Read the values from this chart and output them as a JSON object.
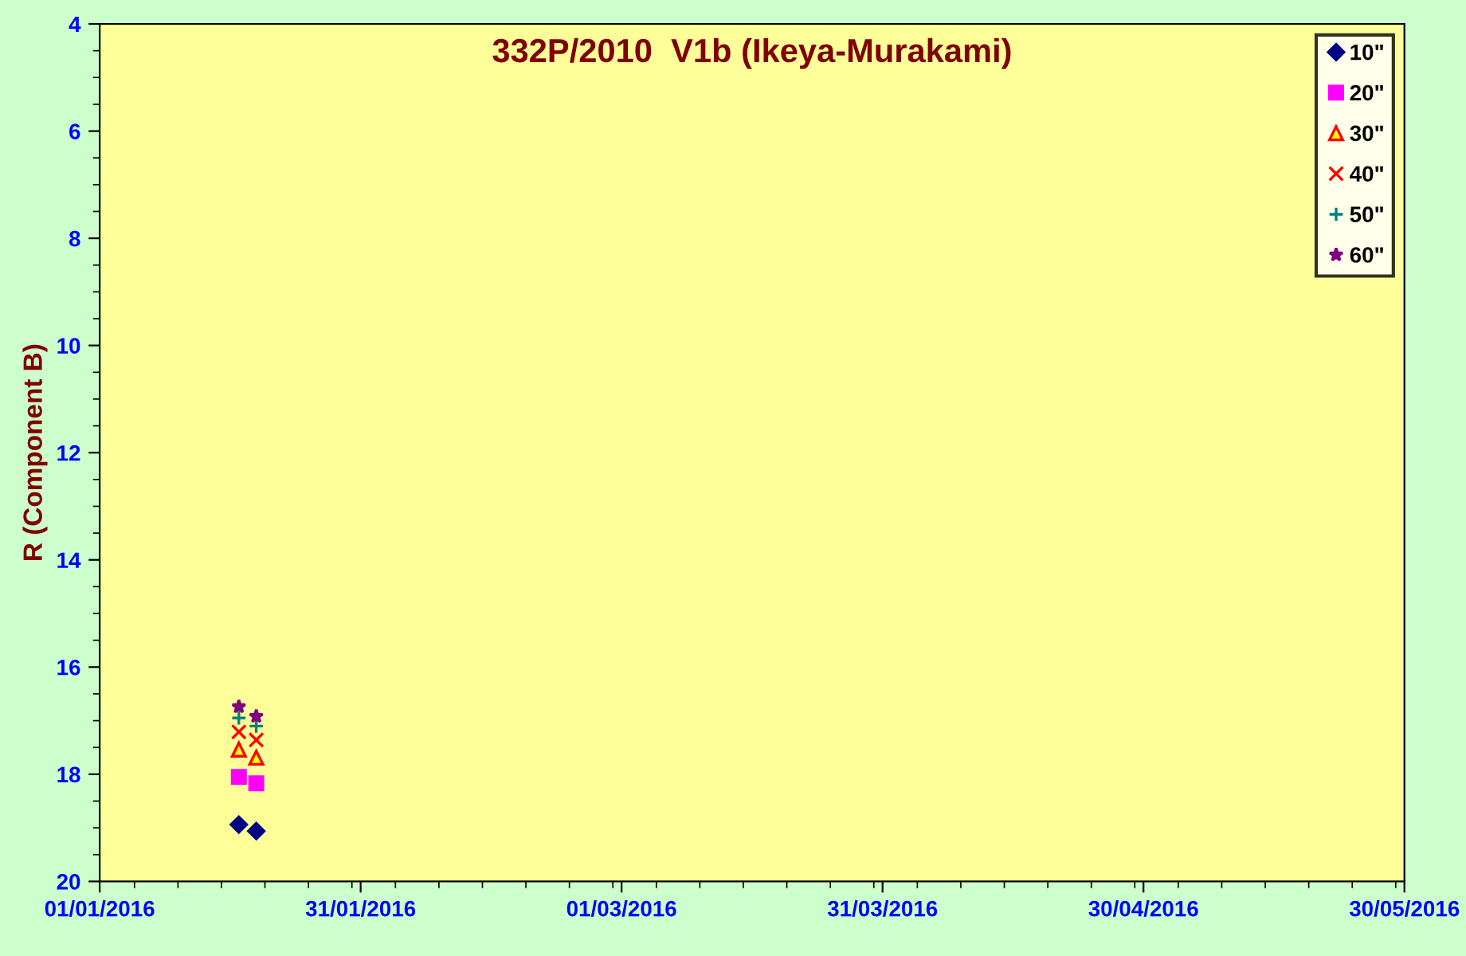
{
  "chart_data": {
    "type": "scatter",
    "title": "332P/2010  V1b (Ikeya-Murakami)",
    "ylabel": "R (Component B)",
    "x": [
      "2016-01-17",
      "2016-01-19"
    ],
    "series": [
      {
        "name": "10\"",
        "color": "#000080",
        "marker": "diamond",
        "values": [
          18.94,
          19.06
        ]
      },
      {
        "name": "20\"",
        "color": "#ff00ff",
        "marker": "square",
        "values": [
          18.05,
          18.17
        ]
      },
      {
        "name": "30\"",
        "color": "#ff0000",
        "marker": "triangle",
        "values": [
          17.54,
          17.69
        ]
      },
      {
        "name": "40\"",
        "color": "#ff0000",
        "marker": "cross",
        "values": [
          17.21,
          17.36
        ]
      },
      {
        "name": "50\"",
        "color": "#008080",
        "marker": "plus",
        "values": [
          16.95,
          17.1
        ]
      },
      {
        "name": "60\"",
        "color": "#800080",
        "marker": "star",
        "values": [
          16.74,
          16.92
        ]
      }
    ],
    "xlim": [
      "2016-01-01",
      "2016-05-30"
    ],
    "xticks": [
      {
        "value": "2016-01-01",
        "label": "01/01/2016"
      },
      {
        "value": "2016-01-31",
        "label": "31/01/2016"
      },
      {
        "value": "2016-03-01",
        "label": "01/03/2016"
      },
      {
        "value": "2016-03-31",
        "label": "31/03/2016"
      },
      {
        "value": "2016-04-30",
        "label": "30/04/2016"
      },
      {
        "value": "2016-05-30",
        "label": "30/05/2016"
      }
    ],
    "ylim": [
      20,
      4
    ],
    "yticks": [
      4,
      6,
      8,
      10,
      12,
      14,
      16,
      18,
      20
    ],
    "grid": false,
    "legend": "top right"
  }
}
